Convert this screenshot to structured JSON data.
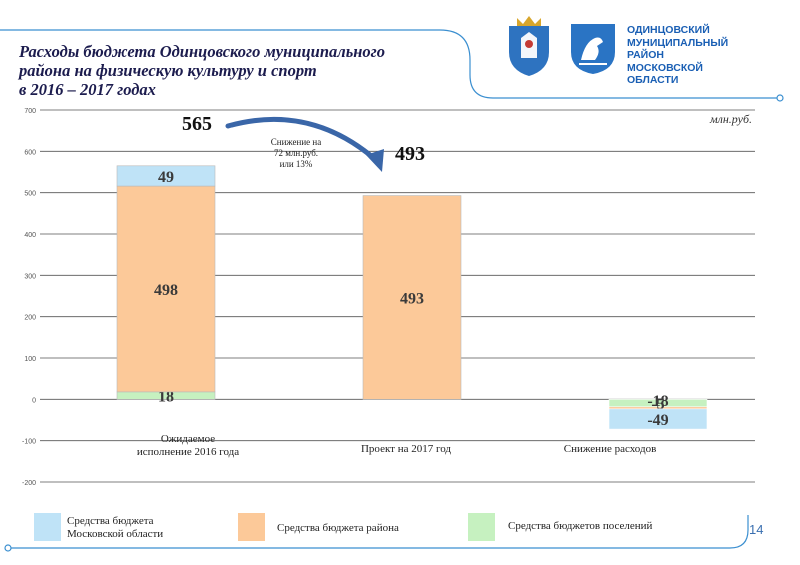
{
  "title": "Расходы бюджета Одинцовского муниципального\nрайона на физическую культуру и спорт\nв 2016 – 2017 годах",
  "logo_text": "ОДИНЦОВСКИЙ\nМУНИЦИПАЛЬНЫЙ РАЙОН\nМОСКОВСКОЙ\nОБЛАСТИ",
  "page_number": "14",
  "colors": {
    "oblast": "#bfe3f7",
    "district": "#fcc999",
    "settlements": "#c6f1c0",
    "frame": "#3b8fd0",
    "arrow": "#3a66a8"
  },
  "chart_data": {
    "type": "bar",
    "stacked": true,
    "unit_label": "млн.руб.",
    "ylim": [
      -200,
      700
    ],
    "yticks": [
      "-200",
      "-100",
      "0",
      "100",
      "200",
      "300",
      "400",
      "500",
      "600",
      "700"
    ],
    "ytick_values": [
      -200,
      -100,
      0,
      100,
      200,
      300,
      400,
      500,
      600,
      700
    ],
    "grid": true,
    "categories": [
      "Ожидаемое\nисполнение 2016 года",
      "Проект на 2017 год",
      "Снижение расходов"
    ],
    "series": [
      {
        "name": "Средства бюджетов поселений",
        "values": [
          18,
          0,
          -18
        ],
        "labels": [
          "18",
          "",
          "-18"
        ],
        "color_key": "settlements"
      },
      {
        "name": "Средства бюджета района",
        "values": [
          498,
          493,
          -5
        ],
        "labels": [
          "498",
          "493",
          "-5"
        ],
        "color_key": "district"
      },
      {
        "name": "Средства бюджета\nМосковской области",
        "values": [
          49,
          0,
          -49
        ],
        "labels": [
          "49",
          "",
          "-49"
        ],
        "color_key": "oblast"
      }
    ],
    "totals": [
      "565",
      "493"
    ],
    "annotation": "Снижение на\n72 млн.руб.\nили 13%",
    "legend": {
      "placement": "bottom",
      "items": [
        "Средства бюджета\nМосковской области",
        "Средства бюджета района",
        "Средства бюджетов поселений"
      ]
    }
  }
}
